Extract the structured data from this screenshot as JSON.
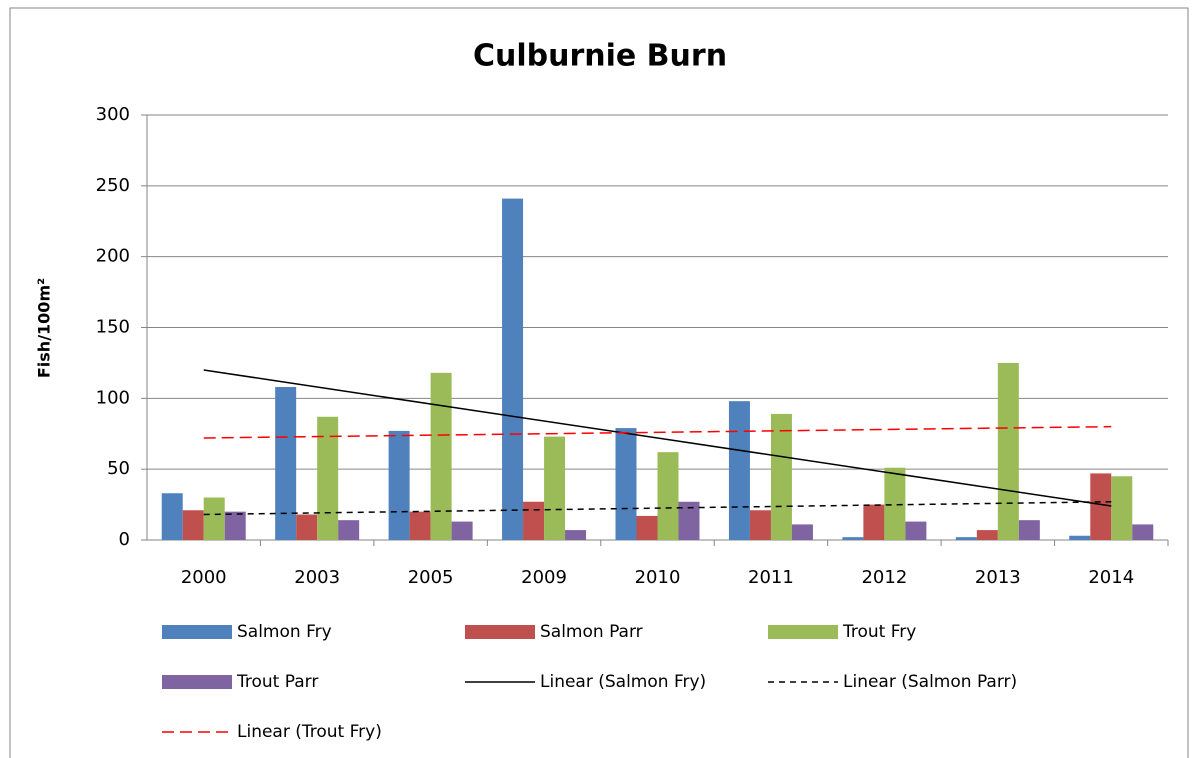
{
  "chart_data": {
    "type": "bar",
    "title": "Culburnie Burn",
    "y_label": "Fish/100m²",
    "categories": [
      "2000",
      "2003",
      "2005",
      "2009",
      "2010",
      "2011",
      "2012",
      "2013",
      "2014"
    ],
    "series": [
      {
        "name": "Salmon Fry",
        "color": "#4f81bd",
        "values": [
          33,
          108,
          77,
          241,
          79,
          98,
          2,
          2,
          3
        ]
      },
      {
        "name": "Salmon Parr",
        "color": "#c0504d",
        "values": [
          21,
          18,
          20,
          27,
          17,
          21,
          25,
          7,
          47
        ]
      },
      {
        "name": "Trout Fry",
        "color": "#9bbb59",
        "values": [
          30,
          87,
          118,
          73,
          62,
          89,
          51,
          125,
          45
        ]
      },
      {
        "name": "Trout Parr",
        "color": "#8064a2",
        "values": [
          20,
          14,
          13,
          7,
          27,
          11,
          13,
          14,
          11
        ]
      }
    ],
    "trendlines": [
      {
        "name": "Linear (Salmon Fry)",
        "color": "#000000",
        "dash": "none",
        "values": [
          120,
          24
        ]
      },
      {
        "name": "Linear (Salmon Parr)",
        "color": "#000000",
        "dash": "6 5",
        "values": [
          18,
          27
        ]
      },
      {
        "name": "Linear (Trout Fry)",
        "color": "#ff0000",
        "dash": "12 6",
        "values": [
          72,
          80
        ]
      }
    ],
    "ylim": [
      0,
      300
    ],
    "yticks": [
      0,
      50,
      100,
      150,
      200,
      250,
      300
    ],
    "grid": true
  }
}
